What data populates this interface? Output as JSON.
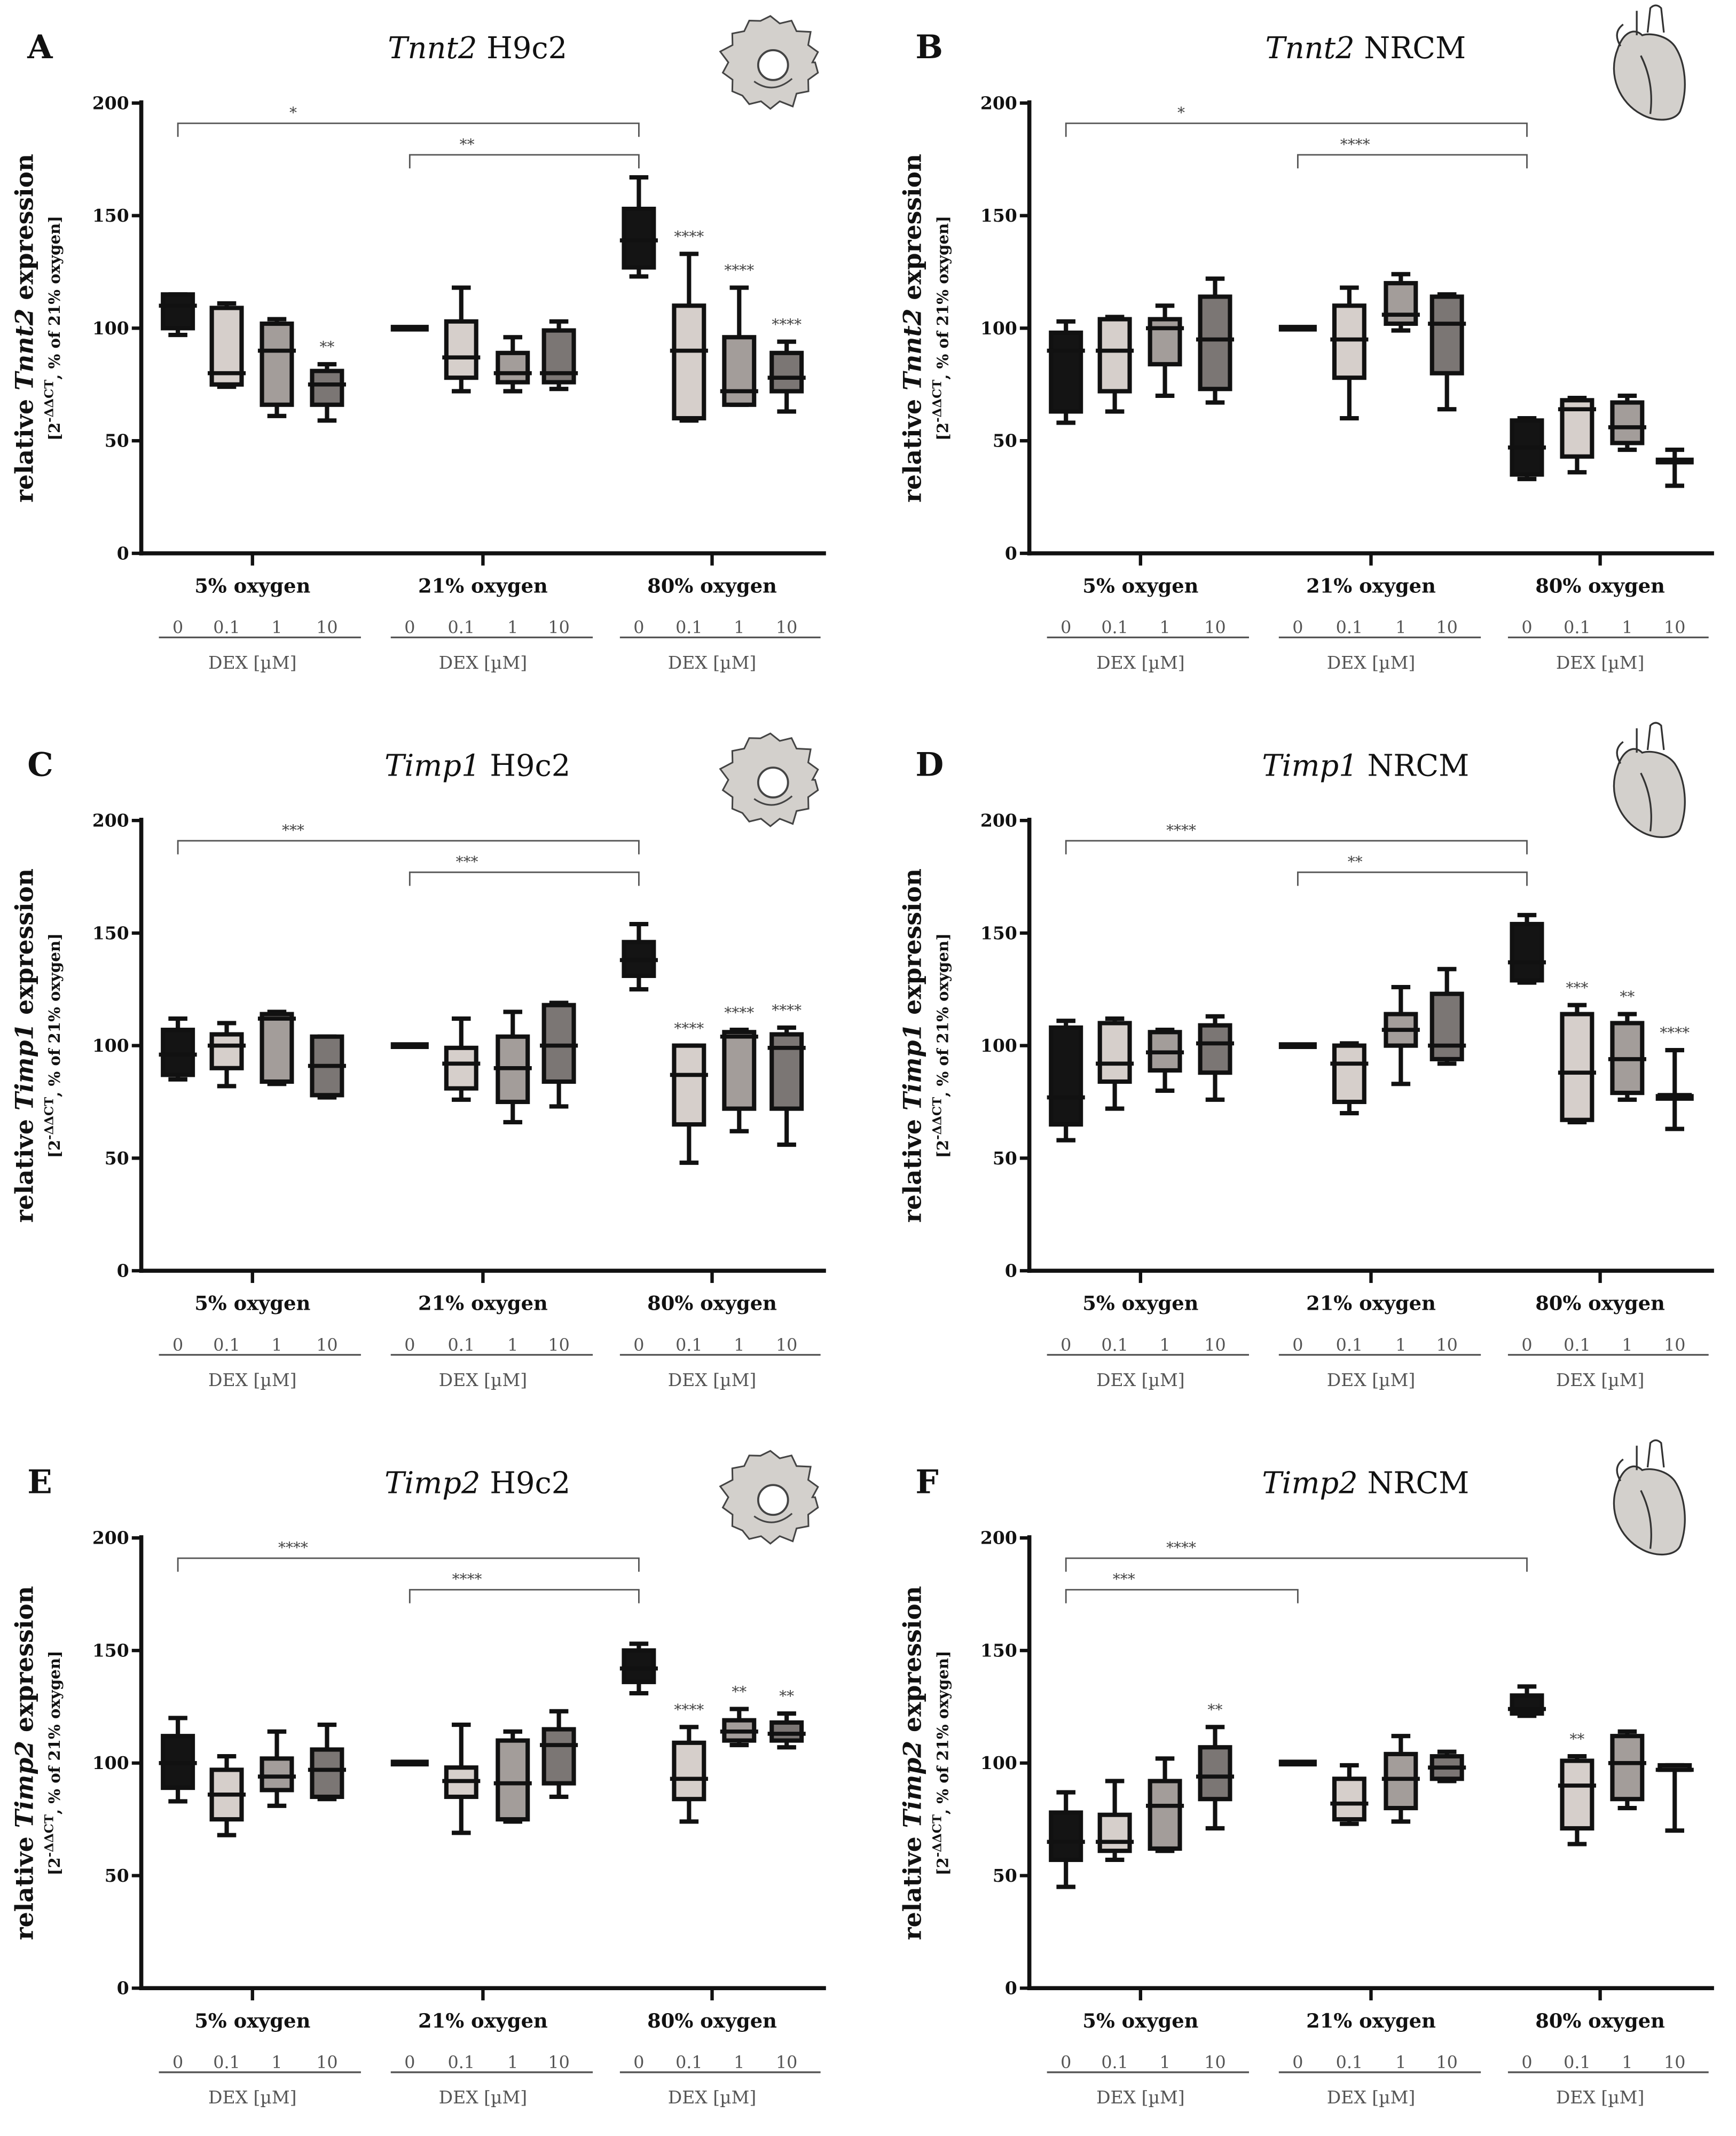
{
  "colors": {
    "dose_0": "#141414",
    "dose_0.1": "#d6cfcb",
    "dose_1": "#a39d9a",
    "dose_10": "#7b7674",
    "stroke": "#111111",
    "bracket": "#555555",
    "icon_fill": "#d3d0cc"
  },
  "chart_data": [
    {
      "type": "box",
      "panel": "A",
      "gene": "Tnnt2",
      "cell": "H9c2",
      "icon": "cell-icon",
      "ylabel_prefix": "relative",
      "ylabel_suffix": "expression",
      "ysub_base": "[2",
      "ysub_sup": "-ΔΔCT",
      "ysub_rest": ", % of 21% oxygen]",
      "yticks": [
        0,
        50,
        100,
        150,
        200
      ],
      "ylim": [
        0,
        200
      ],
      "groups": [
        "5% oxygen",
        "21% oxygen",
        "80% oxygen"
      ],
      "doses": [
        "0",
        "0.1",
        "1",
        "10"
      ],
      "xlabel": "DEX [µM]",
      "boxes": [
        [
          97,
          100,
          110,
          115,
          115,
          ""
        ],
        [
          74,
          75,
          80,
          109,
          111,
          ""
        ],
        [
          61,
          66,
          90,
          102,
          104,
          ""
        ],
        [
          59,
          66,
          75,
          81,
          84,
          "**"
        ],
        [
          100,
          100,
          100,
          100,
          100,
          ""
        ],
        [
          72,
          78,
          87,
          103,
          118,
          ""
        ],
        [
          72,
          76,
          80,
          89,
          96,
          ""
        ],
        [
          73,
          76,
          80,
          99,
          103,
          ""
        ],
        [
          123,
          127,
          139,
          153,
          167,
          ""
        ],
        [
          59,
          60,
          90,
          110,
          133,
          "****"
        ],
        [
          66,
          66,
          72,
          96,
          118,
          "****"
        ],
        [
          63,
          72,
          78,
          89,
          94,
          "****"
        ]
      ],
      "brackets": [
        {
          "from": 0,
          "to": 8,
          "level": 191,
          "label": "*"
        },
        {
          "from": 4,
          "to": 8,
          "level": 177,
          "label": "**"
        }
      ]
    },
    {
      "type": "box",
      "panel": "B",
      "gene": "Tnnt2",
      "cell": "NRCM",
      "icon": "heart-icon",
      "ylabel_prefix": "relative",
      "ylabel_suffix": "expression",
      "ysub_base": "[2",
      "ysub_sup": "-ΔΔCT",
      "ysub_rest": ", % of 21% oxygen]",
      "yticks": [
        0,
        50,
        100,
        150,
        200
      ],
      "ylim": [
        0,
        200
      ],
      "groups": [
        "5% oxygen",
        "21% oxygen",
        "80% oxygen"
      ],
      "doses": [
        "0",
        "0.1",
        "1",
        "10"
      ],
      "xlabel": "DEX [µM]",
      "boxes": [
        [
          58,
          63,
          90,
          98,
          103,
          ""
        ],
        [
          63,
          72,
          90,
          104,
          105,
          ""
        ],
        [
          70,
          84,
          100,
          104,
          110,
          ""
        ],
        [
          67,
          73,
          95,
          114,
          122,
          ""
        ],
        [
          100,
          100,
          100,
          100,
          100,
          ""
        ],
        [
          60,
          78,
          95,
          110,
          118,
          ""
        ],
        [
          99,
          102,
          106,
          120,
          124,
          ""
        ],
        [
          64,
          80,
          102,
          114,
          115,
          ""
        ],
        [
          33,
          35,
          47,
          59,
          60,
          ""
        ],
        [
          36,
          43,
          64,
          68,
          69,
          ""
        ],
        [
          46,
          49,
          56,
          67,
          70,
          ""
        ],
        [
          30,
          41,
          41,
          41,
          46,
          ""
        ]
      ],
      "brackets": [
        {
          "from": 0,
          "to": 8,
          "level": 191,
          "label": "*"
        },
        {
          "from": 4,
          "to": 8,
          "level": 177,
          "label": "****"
        }
      ]
    },
    {
      "type": "box",
      "panel": "C",
      "gene": "Timp1",
      "cell": "H9c2",
      "icon": "cell-icon",
      "ylabel_prefix": "relative",
      "ylabel_suffix": "expression",
      "ysub_base": "[2",
      "ysub_sup": "-ΔΔCT",
      "ysub_rest": ", % of 21% oxygen]",
      "yticks": [
        0,
        50,
        100,
        150,
        200
      ],
      "ylim": [
        0,
        200
      ],
      "groups": [
        "5% oxygen",
        "21% oxygen",
        "80% oxygen"
      ],
      "doses": [
        "0",
        "0.1",
        "1",
        "10"
      ],
      "xlabel": "DEX [µM]",
      "boxes": [
        [
          85,
          87,
          96,
          107,
          112,
          ""
        ],
        [
          82,
          90,
          100,
          105,
          110,
          ""
        ],
        [
          83,
          84,
          112,
          114,
          115,
          ""
        ],
        [
          77,
          78,
          91,
          104,
          104,
          ""
        ],
        [
          100,
          100,
          100,
          100,
          100,
          ""
        ],
        [
          76,
          81,
          92,
          99,
          112,
          ""
        ],
        [
          66,
          75,
          90,
          104,
          115,
          ""
        ],
        [
          73,
          84,
          100,
          118,
          119,
          ""
        ],
        [
          125,
          131,
          138,
          146,
          154,
          ""
        ],
        [
          48,
          65,
          87,
          100,
          100,
          "****"
        ],
        [
          62,
          72,
          104,
          106,
          107,
          "****"
        ],
        [
          56,
          72,
          99,
          105,
          108,
          "****"
        ]
      ],
      "brackets": [
        {
          "from": 0,
          "to": 8,
          "level": 191,
          "label": "***"
        },
        {
          "from": 4,
          "to": 8,
          "level": 177,
          "label": "***"
        }
      ]
    },
    {
      "type": "box",
      "panel": "D",
      "gene": "Timp1",
      "cell": "NRCM",
      "icon": "heart-icon",
      "ylabel_prefix": "relative",
      "ylabel_suffix": "expression",
      "ysub_base": "[2",
      "ysub_sup": "-ΔΔCT",
      "ysub_rest": ", % of 21% oxygen]",
      "yticks": [
        0,
        50,
        100,
        150,
        200
      ],
      "ylim": [
        0,
        200
      ],
      "groups": [
        "5% oxygen",
        "21% oxygen",
        "80% oxygen"
      ],
      "doses": [
        "0",
        "0.1",
        "1",
        "10"
      ],
      "xlabel": "DEX [µM]",
      "boxes": [
        [
          58,
          65,
          77,
          108,
          111,
          ""
        ],
        [
          72,
          84,
          92,
          110,
          112,
          ""
        ],
        [
          80,
          89,
          97,
          106,
          107,
          ""
        ],
        [
          76,
          88,
          101,
          109,
          113,
          ""
        ],
        [
          100,
          100,
          100,
          100,
          100,
          ""
        ],
        [
          70,
          75,
          92,
          100,
          101,
          ""
        ],
        [
          83,
          100,
          107,
          114,
          126,
          ""
        ],
        [
          92,
          94,
          100,
          123,
          134,
          ""
        ],
        [
          128,
          129,
          137,
          154,
          158,
          ""
        ],
        [
          66,
          67,
          88,
          114,
          118,
          "***"
        ],
        [
          76,
          79,
          94,
          110,
          114,
          "**"
        ],
        [
          63,
          77,
          77,
          78,
          98,
          "****"
        ]
      ],
      "brackets": [
        {
          "from": 0,
          "to": 8,
          "level": 191,
          "label": "****"
        },
        {
          "from": 4,
          "to": 8,
          "level": 177,
          "label": "**"
        }
      ]
    },
    {
      "type": "box",
      "panel": "E",
      "gene": "Timp2",
      "cell": "H9c2",
      "icon": "cell-icon",
      "ylabel_prefix": "relative",
      "ylabel_suffix": "expression",
      "ysub_base": "[2",
      "ysub_sup": "-ΔΔCT",
      "ysub_rest": ", % of 21% oxygen]",
      "yticks": [
        0,
        50,
        100,
        150,
        200
      ],
      "ylim": [
        0,
        200
      ],
      "groups": [
        "5% oxygen",
        "21% oxygen",
        "80% oxygen"
      ],
      "doses": [
        "0",
        "0.1",
        "1",
        "10"
      ],
      "xlabel": "DEX [µM]",
      "boxes": [
        [
          83,
          89,
          100,
          112,
          120,
          ""
        ],
        [
          68,
          75,
          86,
          97,
          103,
          ""
        ],
        [
          81,
          88,
          94,
          102,
          114,
          ""
        ],
        [
          84,
          85,
          97,
          106,
          117,
          ""
        ],
        [
          100,
          100,
          100,
          100,
          100,
          ""
        ],
        [
          69,
          85,
          92,
          98,
          117,
          ""
        ],
        [
          74,
          75,
          91,
          110,
          114,
          ""
        ],
        [
          85,
          91,
          108,
          115,
          123,
          ""
        ],
        [
          131,
          136,
          142,
          150,
          153,
          ""
        ],
        [
          74,
          84,
          93,
          109,
          116,
          "****"
        ],
        [
          108,
          110,
          114,
          119,
          124,
          "**"
        ],
        [
          107,
          110,
          113,
          118,
          122,
          "**"
        ]
      ],
      "brackets": [
        {
          "from": 0,
          "to": 8,
          "level": 191,
          "label": "****"
        },
        {
          "from": 4,
          "to": 8,
          "level": 177,
          "label": "****"
        }
      ]
    },
    {
      "type": "box",
      "panel": "F",
      "gene": "Timp2",
      "cell": "NRCM",
      "icon": "heart-icon",
      "ylabel_prefix": "relative",
      "ylabel_suffix": "expression",
      "ysub_base": "[2",
      "ysub_sup": "-ΔΔCT",
      "ysub_rest": ", % of 21% oxygen]",
      "yticks": [
        0,
        50,
        100,
        150,
        200
      ],
      "ylim": [
        0,
        200
      ],
      "groups": [
        "5% oxygen",
        "21% oxygen",
        "80% oxygen"
      ],
      "doses": [
        "0",
        "0.1",
        "1",
        "10"
      ],
      "xlabel": "DEX [µM]",
      "boxes": [
        [
          45,
          57,
          65,
          78,
          87,
          ""
        ],
        [
          57,
          61,
          65,
          77,
          92,
          ""
        ],
        [
          61,
          62,
          81,
          92,
          102,
          ""
        ],
        [
          71,
          84,
          94,
          107,
          116,
          "**"
        ],
        [
          100,
          100,
          100,
          100,
          100,
          ""
        ],
        [
          73,
          75,
          82,
          93,
          99,
          ""
        ],
        [
          74,
          80,
          93,
          104,
          112,
          ""
        ],
        [
          92,
          93,
          98,
          103,
          105,
          ""
        ],
        [
          121,
          122,
          124,
          130,
          134,
          ""
        ],
        [
          64,
          71,
          90,
          101,
          103,
          "**"
        ],
        [
          80,
          84,
          100,
          112,
          114,
          ""
        ],
        [
          70,
          97,
          97,
          99,
          99,
          ""
        ]
      ],
      "brackets": [
        {
          "from": 0,
          "to": 8,
          "level": 191,
          "label": "****"
        },
        {
          "from": 0,
          "to": 4,
          "level": 177,
          "label": "***"
        }
      ]
    }
  ]
}
